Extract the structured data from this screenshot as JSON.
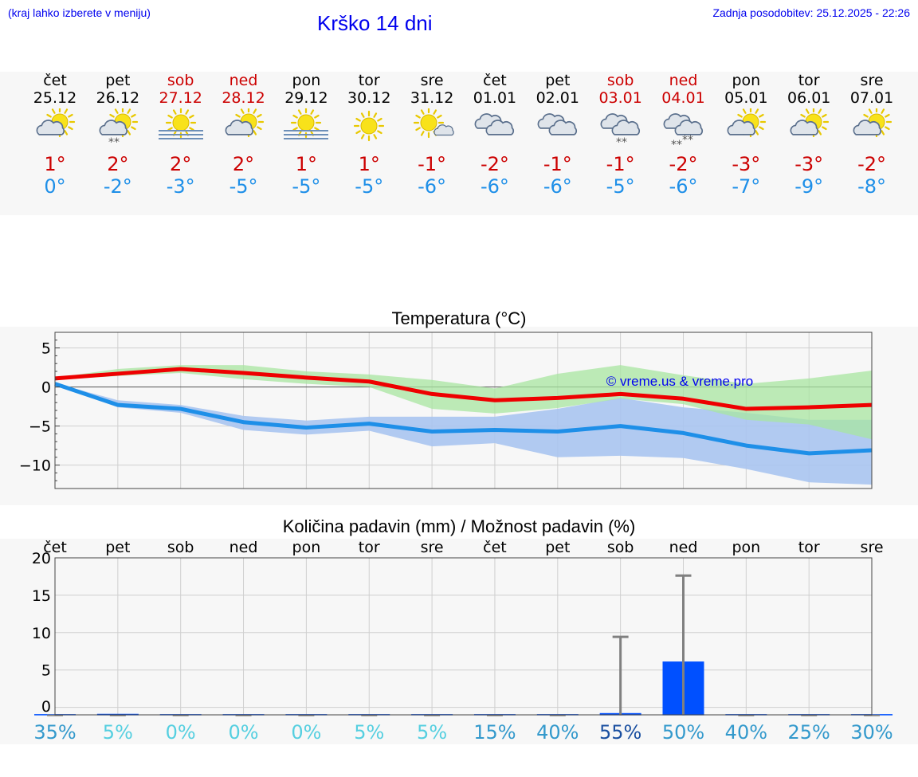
{
  "header": {
    "hint": "(kraj lahko izberete v meniju)",
    "title": "Krško 14 dni",
    "updated": "Zadnja posodobitev: 25.12.2025 - 22:26"
  },
  "days": [
    {
      "name": "čet",
      "date": "25.12",
      "weekend": false,
      "icon": "partly-cloudy-icon",
      "max": "1°",
      "min": "0°"
    },
    {
      "name": "pet",
      "date": "26.12",
      "weekend": false,
      "icon": "partly-cloudy-light-snow-icon",
      "max": "2°",
      "min": "-2°"
    },
    {
      "name": "sob",
      "date": "27.12",
      "weekend": true,
      "icon": "sun-fog-icon",
      "max": "2°",
      "min": "-3°"
    },
    {
      "name": "ned",
      "date": "28.12",
      "weekend": true,
      "icon": "partly-cloudy-icon",
      "max": "2°",
      "min": "-5°"
    },
    {
      "name": "pon",
      "date": "29.12",
      "weekend": false,
      "icon": "sun-fog-icon",
      "max": "1°",
      "min": "-5°"
    },
    {
      "name": "tor",
      "date": "30.12",
      "weekend": false,
      "icon": "sun-icon",
      "max": "1°",
      "min": "-5°"
    },
    {
      "name": "sre",
      "date": "31.12",
      "weekend": false,
      "icon": "sun-small-cloud-icon",
      "max": "-1°",
      "min": "-6°"
    },
    {
      "name": "čet",
      "date": "01.01",
      "weekend": false,
      "icon": "cloudy-icon",
      "max": "-2°",
      "min": "-6°"
    },
    {
      "name": "pet",
      "date": "02.01",
      "weekend": false,
      "icon": "cloudy-icon",
      "max": "-1°",
      "min": "-6°"
    },
    {
      "name": "sob",
      "date": "03.01",
      "weekend": true,
      "icon": "cloudy-light-snow-icon",
      "max": "-1°",
      "min": "-5°"
    },
    {
      "name": "ned",
      "date": "04.01",
      "weekend": true,
      "icon": "cloudy-snow-icon",
      "max": "-2°",
      "min": "-6°"
    },
    {
      "name": "pon",
      "date": "05.01",
      "weekend": false,
      "icon": "partly-cloudy-icon",
      "max": "-3°",
      "min": "-7°"
    },
    {
      "name": "tor",
      "date": "06.01",
      "weekend": false,
      "icon": "partly-cloudy-icon",
      "max": "-3°",
      "min": "-9°"
    },
    {
      "name": "sre",
      "date": "07.01",
      "weekend": false,
      "icon": "partly-cloudy-icon",
      "max": "-2°",
      "min": "-8°"
    }
  ],
  "colors": {
    "link": "#0000ee",
    "weekend": "#cc0000",
    "max": "#ee0000",
    "min": "#1e8fe8",
    "max_band": "#a8e6a0",
    "min_band": "#a9c4f0",
    "overlap": "#7ec6a8",
    "precip_bar": "#0050ff"
  },
  "chart_data": [
    {
      "type": "line",
      "title": "Temperatura (°C)",
      "watermark": "© vreme.us & vreme.pro",
      "xlabel": "",
      "ylabel": "",
      "ylim": [
        -13,
        7
      ],
      "yticks": [
        5,
        0,
        -5,
        -10
      ],
      "ytick_labels": [
        "5",
        "0",
        "−5",
        "−10"
      ],
      "x": [
        0,
        1,
        2,
        3,
        4,
        5,
        6,
        7,
        8,
        9,
        10,
        11,
        12,
        13
      ],
      "series": [
        {
          "name": "max",
          "values": [
            1.1,
            1.7,
            2.3,
            1.8,
            1.2,
            0.7,
            -0.9,
            -1.7,
            -1.4,
            -0.9,
            -1.5,
            -2.8,
            -2.6,
            -2.3
          ],
          "band_low": [
            0.9,
            1.4,
            1.8,
            1.0,
            0.4,
            0.0,
            -2.8,
            -3.4,
            -2.7,
            -1.5,
            -2.2,
            -4.2,
            -4.8,
            -6.7
          ],
          "band_high": [
            1.2,
            2.3,
            2.8,
            2.8,
            2.0,
            1.6,
            0.9,
            -0.2,
            1.7,
            2.8,
            1.5,
            0.4,
            1.1,
            2.1
          ]
        },
        {
          "name": "min",
          "values": [
            0.4,
            -2.3,
            -2.8,
            -4.5,
            -5.2,
            -4.7,
            -5.7,
            -5.5,
            -5.7,
            -5.0,
            -5.9,
            -7.5,
            -8.5,
            -8.1
          ],
          "band_low": [
            0.3,
            -2.6,
            -3.3,
            -5.5,
            -6.1,
            -5.6,
            -7.6,
            -7.2,
            -9.0,
            -8.8,
            -9.1,
            -10.5,
            -12.2,
            -12.5
          ],
          "band_high": [
            0.5,
            -1.7,
            -2.3,
            -3.7,
            -4.3,
            -3.8,
            -3.8,
            -3.8,
            -2.8,
            -1.4,
            -2.6,
            -3.3,
            -4.2,
            -4.2
          ]
        }
      ]
    },
    {
      "type": "bar",
      "title": "Količina padavin (mm) / Možnost padavin (%)",
      "categories": [
        "čet",
        "pet",
        "sob",
        "ned",
        "pon",
        "tor",
        "sre",
        "čet",
        "pet",
        "sob",
        "ned",
        "pon",
        "tor",
        "sre"
      ],
      "values": [
        0,
        0.2,
        0,
        0,
        0,
        0,
        0,
        0,
        0,
        0.3,
        7.2,
        0,
        0,
        0
      ],
      "error_max": [
        0,
        0.3,
        0,
        0,
        0,
        0,
        0,
        0,
        0,
        10.5,
        18.7,
        0,
        0,
        0
      ],
      "probability": [
        "35%",
        "5%",
        "0%",
        "0%",
        "0%",
        "5%",
        "5%",
        "15%",
        "40%",
        "55%",
        "50%",
        "40%",
        "25%",
        "30%"
      ],
      "probability_colors": [
        "#3399cc",
        "#55cfe0",
        "#55cfe0",
        "#55cfe0",
        "#55cfe0",
        "#55cfe0",
        "#55cfe0",
        "#3399cc",
        "#3399cc",
        "#1a4fa0",
        "#3399cc",
        "#3399cc",
        "#3399cc",
        "#3399cc"
      ],
      "ylim": [
        -1,
        20
      ],
      "yticks": [
        0,
        5,
        10,
        15,
        20
      ],
      "ytick_labels": [
        "0",
        "5",
        "10",
        "15",
        "20"
      ],
      "xlabel": "",
      "ylabel": ""
    }
  ]
}
